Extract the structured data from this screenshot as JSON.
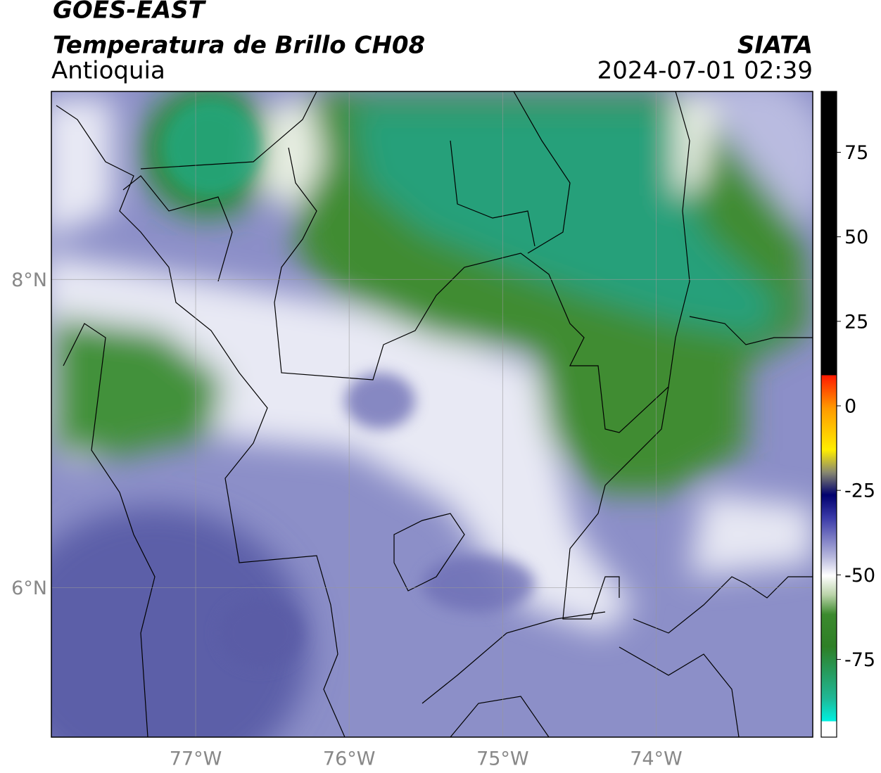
{
  "header": {
    "satellite": "GOES-EAST",
    "product": "Temperatura de Brillo CH08",
    "region": "Antioquia",
    "source": "SIATA",
    "timestamp": "2024-07-01 02:39"
  },
  "map": {
    "lonlim": [
      -77.94,
      -72.98
    ],
    "latlim": [
      5.03,
      9.22
    ],
    "lon_ticks": [
      {
        "value": -77,
        "label": "77°W"
      },
      {
        "value": -76,
        "label": "76°W"
      },
      {
        "value": -75,
        "label": "75°W"
      },
      {
        "value": -74,
        "label": "74°W"
      }
    ],
    "lat_ticks": [
      {
        "value": 8,
        "label": "8°N"
      },
      {
        "value": 6,
        "label": "6°N"
      }
    ]
  },
  "colorbar": {
    "clim": [
      -98,
      93
    ],
    "ticks": [
      75,
      50,
      25,
      0,
      -25,
      -50,
      -75
    ]
  }
}
